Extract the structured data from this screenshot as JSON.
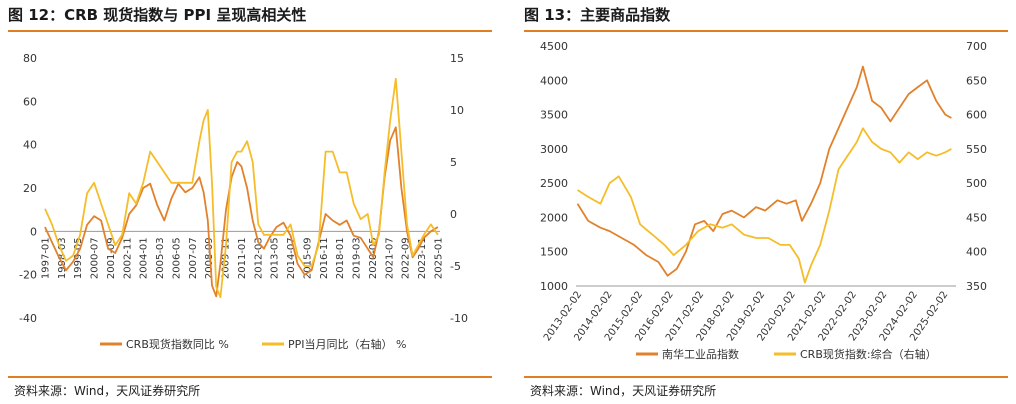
{
  "figures": {
    "left": {
      "title": "图 12：CRB 现货指数与 PPI 呈现高相关性",
      "source": "资料来源：Wind，天风证券研究所"
    },
    "right": {
      "title": "图 13：主要商品指数",
      "source": "资料来源：Wind，天风证券研究所"
    }
  },
  "chart_data": [
    {
      "type": "line",
      "title": "",
      "xlabel": "",
      "ylabel": "",
      "x_ticks": [
        "1997-01",
        "1998-03",
        "1999-05",
        "2000-07",
        "2001-09",
        "2002-11",
        "2004-01",
        "2005-03",
        "2006-05",
        "2007-07",
        "2008-09",
        "2009-11",
        "2011-01",
        "2012-03",
        "2013-05",
        "2014-07",
        "2015-09",
        "2016-11",
        "2018-01",
        "2019-03",
        "2020-05",
        "2021-07",
        "2022-09",
        "2023-11",
        "2025-01"
      ],
      "y_left": {
        "ticks": [
          -40,
          -20,
          0,
          20,
          40,
          60,
          80
        ],
        "ylim": [
          -40,
          80
        ]
      },
      "y_right": {
        "ticks": [
          -10,
          -5,
          0,
          5,
          10,
          15
        ],
        "ylim": [
          -10,
          15
        ]
      },
      "legend_position": "bottom",
      "series": [
        {
          "name": "CRB现货指数同比 %",
          "axis": "left",
          "color": "#e2812c",
          "x": [
            1997.0,
            1997.5,
            1998.0,
            1998.5,
            1999.0,
            1999.5,
            2000.0,
            2000.5,
            2001.0,
            2001.5,
            2002.0,
            2002.5,
            2003.0,
            2003.5,
            2004.0,
            2004.5,
            2005.0,
            2005.5,
            2006.0,
            2006.5,
            2007.0,
            2007.5,
            2008.0,
            2008.3,
            2008.6,
            2008.9,
            2009.2,
            2009.5,
            2009.9,
            2010.3,
            2010.7,
            2011.0,
            2011.4,
            2011.8,
            2012.2,
            2012.6,
            2013.0,
            2013.5,
            2014.0,
            2014.5,
            2015.0,
            2015.5,
            2016.0,
            2016.5,
            2017.0,
            2017.5,
            2018.0,
            2018.5,
            2019.0,
            2019.5,
            2020.0,
            2020.4,
            2020.8,
            2021.2,
            2021.6,
            2022.0,
            2022.4,
            2022.8,
            2023.2,
            2023.6,
            2024.0,
            2024.5,
            2025.0
          ],
          "values": [
            2,
            -5,
            -12,
            -18,
            -14,
            -8,
            3,
            7,
            5,
            -8,
            -10,
            -3,
            8,
            12,
            20,
            22,
            12,
            5,
            15,
            22,
            18,
            20,
            25,
            18,
            5,
            -25,
            -30,
            -15,
            10,
            25,
            32,
            30,
            20,
            5,
            -5,
            -8,
            -3,
            2,
            4,
            -2,
            -15,
            -20,
            -18,
            -5,
            8,
            5,
            3,
            5,
            -2,
            -3,
            -8,
            -12,
            0,
            25,
            42,
            48,
            20,
            0,
            -12,
            -8,
            -3,
            0,
            2
          ]
        },
        {
          "name": "PPI当月同比（右轴） %",
          "axis": "right",
          "color": "#f5bd29",
          "x": [
            1997.0,
            1997.5,
            1998.0,
            1998.5,
            1999.0,
            1999.5,
            2000.0,
            2000.5,
            2001.0,
            2001.5,
            2002.0,
            2002.5,
            2003.0,
            2003.5,
            2004.0,
            2004.5,
            2005.0,
            2005.5,
            2006.0,
            2006.5,
            2007.0,
            2007.5,
            2008.0,
            2008.3,
            2008.6,
            2008.9,
            2009.2,
            2009.5,
            2009.9,
            2010.3,
            2010.7,
            2011.0,
            2011.4,
            2011.8,
            2012.2,
            2012.6,
            2013.0,
            2013.5,
            2014.0,
            2014.5,
            2015.0,
            2015.5,
            2016.0,
            2016.5,
            2017.0,
            2017.5,
            2018.0,
            2018.5,
            2019.0,
            2019.5,
            2020.0,
            2020.4,
            2020.8,
            2021.2,
            2021.6,
            2022.0,
            2022.4,
            2022.8,
            2023.2,
            2023.6,
            2024.0,
            2024.5,
            2025.0
          ],
          "values": [
            0.5,
            -1,
            -3,
            -4.5,
            -4,
            -2,
            2,
            3,
            1,
            -1,
            -3,
            -2,
            2,
            1,
            3,
            6,
            5,
            4,
            3,
            3,
            3,
            3,
            7,
            9,
            10,
            3,
            -7,
            -8,
            -3,
            5,
            6,
            6,
            7,
            5,
            -1,
            -2,
            -2,
            -2,
            -2,
            -1,
            -4,
            -5,
            -5,
            -3,
            6,
            6,
            4,
            4,
            1,
            -0.5,
            0,
            -3,
            -2,
            4,
            9,
            13,
            6,
            -1,
            -4,
            -3,
            -2,
            -1,
            -2
          ]
        }
      ]
    },
    {
      "type": "line",
      "title": "",
      "xlabel": "",
      "ylabel": "",
      "x_ticks": [
        "2013-02-02",
        "2014-02-02",
        "2015-02-02",
        "2016-02-02",
        "2017-02-02",
        "2018-02-02",
        "2019-02-02",
        "2020-02-02",
        "2021-02-02",
        "2022-02-02",
        "2023-02-02",
        "2024-02-02",
        "2025-02-02"
      ],
      "y_left": {
        "ticks": [
          1000,
          1500,
          2000,
          2500,
          3000,
          3500,
          4000,
          4500
        ],
        "ylim": [
          1000,
          4500
        ]
      },
      "y_right": {
        "ticks": [
          350,
          400,
          450,
          500,
          550,
          600,
          650,
          700
        ],
        "ylim": [
          350,
          700
        ]
      },
      "legend_position": "bottom",
      "series": [
        {
          "name": "南华工业品指数",
          "axis": "left",
          "color": "#e2812c",
          "x": [
            2012.95,
            2013.3,
            2013.7,
            2014.0,
            2014.4,
            2014.8,
            2015.2,
            2015.6,
            2015.9,
            2016.2,
            2016.5,
            2016.8,
            2017.1,
            2017.4,
            2017.7,
            2018.0,
            2018.4,
            2018.8,
            2019.1,
            2019.5,
            2019.8,
            2020.1,
            2020.3,
            2020.6,
            2020.9,
            2021.2,
            2021.5,
            2021.8,
            2022.1,
            2022.3,
            2022.6,
            2022.9,
            2023.2,
            2023.5,
            2023.8,
            2024.1,
            2024.4,
            2024.7,
            2025.0,
            2025.2
          ],
          "values": [
            2200,
            1950,
            1850,
            1800,
            1700,
            1600,
            1450,
            1350,
            1150,
            1250,
            1500,
            1900,
            1950,
            1800,
            2050,
            2100,
            2000,
            2150,
            2100,
            2250,
            2200,
            2250,
            1950,
            2200,
            2500,
            3000,
            3300,
            3600,
            3900,
            4200,
            3700,
            3600,
            3400,
            3600,
            3800,
            3900,
            4000,
            3700,
            3500,
            3450
          ]
        },
        {
          "name": "CRB现货指数:综合（右轴）",
          "axis": "right",
          "color": "#f5bd29",
          "x": [
            2012.95,
            2013.3,
            2013.7,
            2014.0,
            2014.3,
            2014.7,
            2015.0,
            2015.4,
            2015.8,
            2016.1,
            2016.5,
            2016.9,
            2017.3,
            2017.7,
            2018.0,
            2018.4,
            2018.8,
            2019.2,
            2019.6,
            2019.9,
            2020.2,
            2020.4,
            2020.6,
            2020.9,
            2021.2,
            2021.5,
            2021.8,
            2022.1,
            2022.3,
            2022.6,
            2022.9,
            2023.2,
            2023.5,
            2023.8,
            2024.1,
            2024.4,
            2024.7,
            2025.0,
            2025.2
          ],
          "values": [
            490,
            480,
            470,
            500,
            510,
            480,
            440,
            425,
            410,
            395,
            410,
            430,
            440,
            435,
            440,
            425,
            420,
            420,
            410,
            410,
            390,
            355,
            380,
            410,
            460,
            520,
            540,
            560,
            580,
            560,
            550,
            545,
            530,
            545,
            535,
            545,
            540,
            545,
            550
          ]
        }
      ]
    }
  ]
}
